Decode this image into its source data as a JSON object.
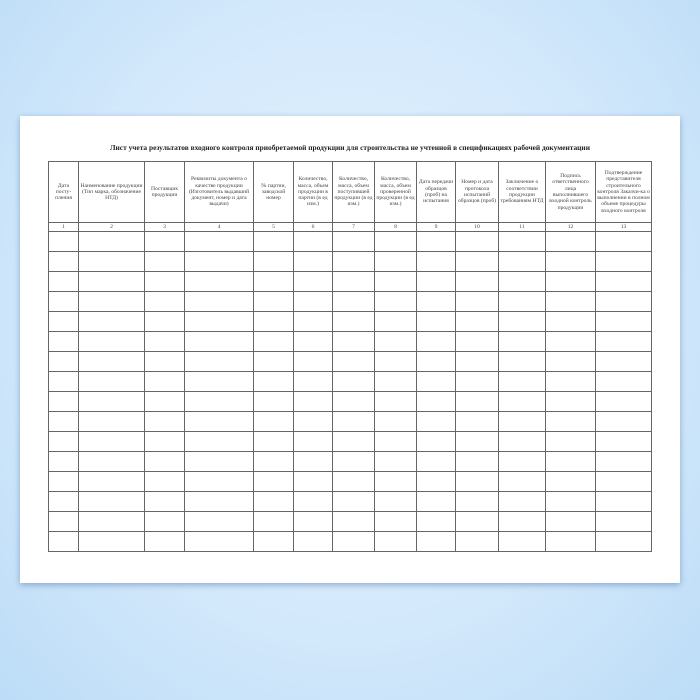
{
  "document": {
    "title": "Лист учета результатов входного контроля приобретаемой продукции для строительства не учтенной в спецификациях рабочей документации",
    "columns": [
      {
        "header": "Дата посту-пления",
        "number": "1"
      },
      {
        "header": "Наименование продукции (Тип марка, обозначение НТД)",
        "number": "2"
      },
      {
        "header": "Поставщик продукции",
        "number": "3"
      },
      {
        "header": "Реквизиты документа о качестве продукции (Изготовитель выдавший документ, номер и дата выдачи)",
        "number": "4"
      },
      {
        "header": "№ партии, заводской номер",
        "number": "5"
      },
      {
        "header": "Количество, масса, объем продукции в партии (в ед изм.)",
        "number": "6"
      },
      {
        "header": "Количество, масса, объем поступившей продукции (в ед изм.)",
        "number": "7"
      },
      {
        "header": "Количество, масса, объем проверенной продукции (в ед изм.)",
        "number": "8"
      },
      {
        "header": "Дата передачи образцов (проб) на испытания",
        "number": "9"
      },
      {
        "header": "Номер и дата протокола испытаний образцов (проб)",
        "number": "10"
      },
      {
        "header": "Заключение о соответствии продукции требованиям НТД",
        "number": "11"
      },
      {
        "header": "Подпись ответственного лица выполнившего входной контроль продукции",
        "number": "12"
      },
      {
        "header": "Подтверждение представителя строительного контроля Заказчи-ка о выполнении в полном объеме процедуры входного контроля",
        "number": "13"
      }
    ],
    "empty_rows": 16
  }
}
